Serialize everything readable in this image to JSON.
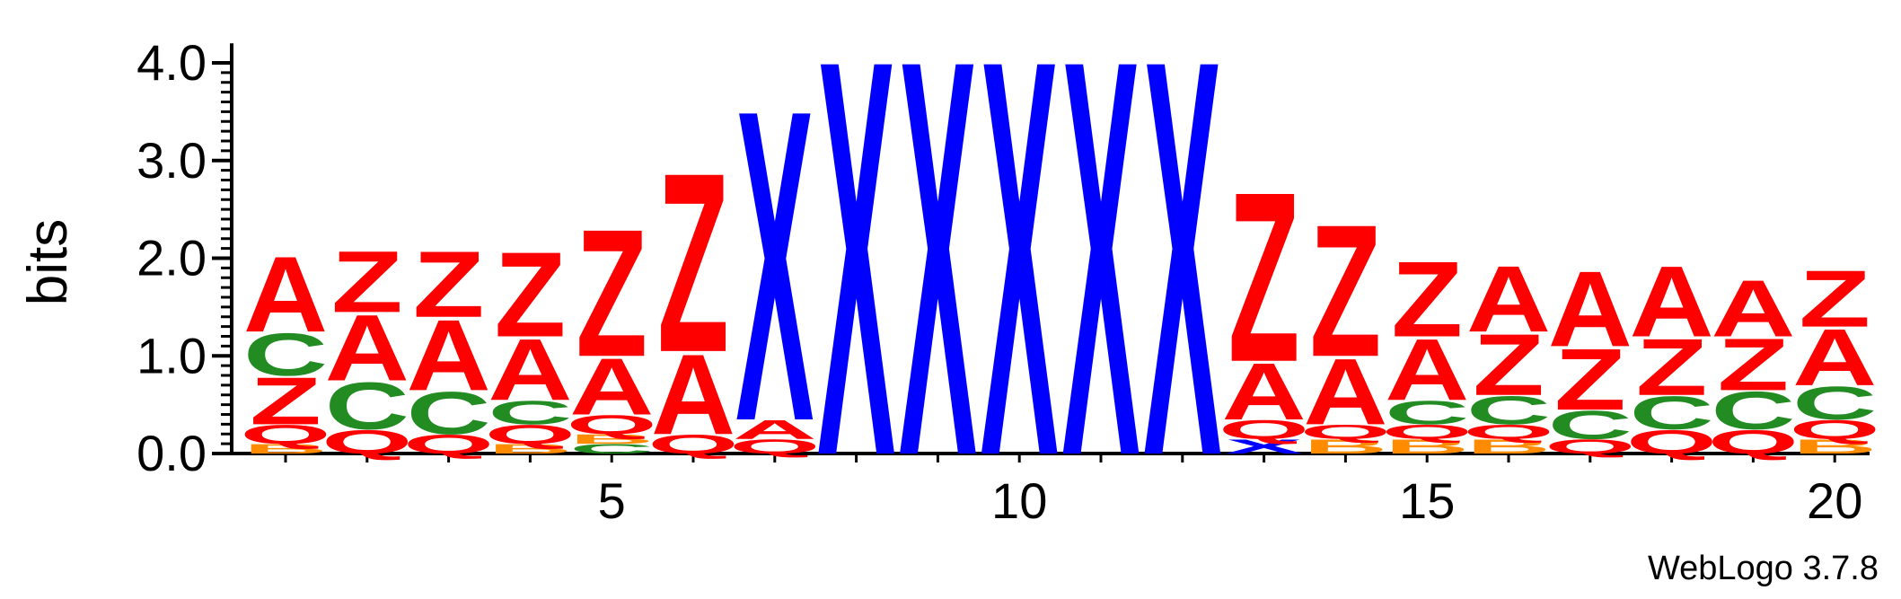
{
  "chart_data": {
    "type": "sequence-logo",
    "ylabel": "bits",
    "ylim": [
      0,
      4.2
    ],
    "y_ticks": [
      "0.0",
      "1.0",
      "2.0",
      "3.0",
      "4.0"
    ],
    "x_ticks": [
      "5",
      "10",
      "15",
      "20"
    ],
    "footer": "WebLogo 3.7.8",
    "colors": {
      "A": "#ff0000",
      "Z": "#ff0000",
      "Q": "#ff0000",
      "C": "#228b22",
      "X": "#0000ff",
      "B": "#ff8c00"
    },
    "positions": [
      {
        "pos": 1,
        "stack": [
          [
            "B",
            0.1
          ],
          [
            "Q",
            0.2
          ],
          [
            "Z",
            0.5
          ],
          [
            "C",
            0.45
          ],
          [
            "A",
            0.8
          ]
        ]
      },
      {
        "pos": 2,
        "stack": [
          [
            "Q",
            0.25
          ],
          [
            "C",
            0.5
          ],
          [
            "A",
            0.7
          ],
          [
            "Z",
            0.65
          ]
        ]
      },
      {
        "pos": 3,
        "stack": [
          [
            "Q",
            0.2
          ],
          [
            "C",
            0.45
          ],
          [
            "A",
            0.75
          ],
          [
            "Z",
            0.7
          ]
        ]
      },
      {
        "pos": 4,
        "stack": [
          [
            "B",
            0.1
          ],
          [
            "Q",
            0.2
          ],
          [
            "C",
            0.25
          ],
          [
            "A",
            0.65
          ],
          [
            "Z",
            0.9
          ]
        ]
      },
      {
        "pos": 5,
        "stack": [
          [
            "C",
            0.1
          ],
          [
            "B",
            0.1
          ],
          [
            "Q",
            0.2
          ],
          [
            "A",
            0.6
          ],
          [
            "Z",
            1.35
          ]
        ]
      },
      {
        "pos": 6,
        "stack": [
          [
            "Q",
            0.2
          ],
          [
            "A",
            0.85
          ],
          [
            "Z",
            1.9
          ]
        ]
      },
      {
        "pos": 7,
        "stack": [
          [
            "Q",
            0.15
          ],
          [
            "A",
            0.2
          ],
          [
            "X",
            3.3
          ]
        ]
      },
      {
        "pos": 8,
        "stack": [
          [
            "X",
            4.2
          ]
        ]
      },
      {
        "pos": 9,
        "stack": [
          [
            "X",
            4.2
          ]
        ]
      },
      {
        "pos": 10,
        "stack": [
          [
            "X",
            4.2
          ]
        ]
      },
      {
        "pos": 11,
        "stack": [
          [
            "X",
            4.2
          ]
        ]
      },
      {
        "pos": 12,
        "stack": [
          [
            "X",
            4.2
          ]
        ]
      },
      {
        "pos": 13,
        "stack": [
          [
            "X",
            0.15
          ],
          [
            "Q",
            0.2
          ],
          [
            "A",
            0.6
          ],
          [
            "Z",
            1.8
          ]
        ]
      },
      {
        "pos": 14,
        "stack": [
          [
            "B",
            0.15
          ],
          [
            "Q",
            0.15
          ],
          [
            "A",
            0.7
          ],
          [
            "Z",
            1.4
          ]
        ]
      },
      {
        "pos": 15,
        "stack": [
          [
            "B",
            0.15
          ],
          [
            "Q",
            0.15
          ],
          [
            "C",
            0.25
          ],
          [
            "A",
            0.65
          ],
          [
            "Z",
            0.8
          ]
        ]
      },
      {
        "pos": 16,
        "stack": [
          [
            "B",
            0.15
          ],
          [
            "Q",
            0.15
          ],
          [
            "C",
            0.3
          ],
          [
            "Z",
            0.65
          ],
          [
            "A",
            0.7
          ]
        ]
      },
      {
        "pos": 17,
        "stack": [
          [
            "Q",
            0.15
          ],
          [
            "C",
            0.3
          ],
          [
            "Z",
            0.65
          ],
          [
            "A",
            0.8
          ]
        ]
      },
      {
        "pos": 18,
        "stack": [
          [
            "Q",
            0.25
          ],
          [
            "C",
            0.35
          ],
          [
            "Z",
            0.6
          ],
          [
            "A",
            0.75
          ]
        ]
      },
      {
        "pos": 19,
        "stack": [
          [
            "Q",
            0.25
          ],
          [
            "C",
            0.4
          ],
          [
            "Z",
            0.55
          ],
          [
            "A",
            0.6
          ]
        ]
      },
      {
        "pos": 20,
        "stack": [
          [
            "B",
            0.15
          ],
          [
            "Q",
            0.2
          ],
          [
            "C",
            0.35
          ],
          [
            "A",
            0.6
          ],
          [
            "Z",
            0.6
          ]
        ]
      }
    ]
  }
}
